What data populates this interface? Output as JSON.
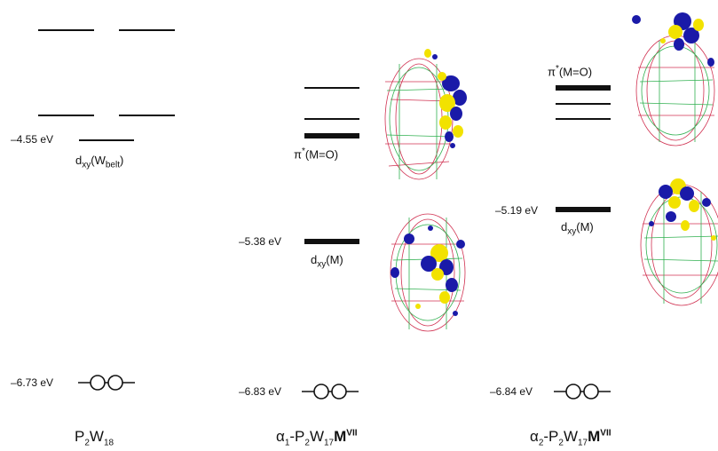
{
  "columns": [
    {
      "title": {
        "pre": "P",
        "s1": "2",
        "mid": "W",
        "s2": "18",
        "bold": "",
        "sup": ""
      },
      "empty_level": {
        "energy": "–4.55 eV",
        "label_main": "d",
        "label_sub": "xy",
        "label_rest": "(W",
        "label_sub2": "belt",
        "label_end": ")"
      },
      "occupied": {
        "energy": "–6.73 eV"
      }
    },
    {
      "title": {
        "pre": "α",
        "s1": "1",
        "mid": "-P",
        "s2": "2",
        "mid2": "W",
        "s3": "17",
        "bold": "M",
        "sup": "VII"
      },
      "pi_label": {
        "main": "π",
        "sup": "*",
        "rest": "(M=O)"
      },
      "dxy_level": {
        "energy": "–5.38 eV",
        "label_main": "d",
        "label_sub": "xy",
        "label_rest": "(M)"
      },
      "occupied": {
        "energy": "–6.83 eV"
      }
    },
    {
      "title": {
        "pre": "α",
        "s1": "2",
        "mid": "-P",
        "s2": "2",
        "mid2": "W",
        "s3": "17",
        "bold": "M",
        "sup": "VII"
      },
      "pi_label": {
        "main": "π",
        "sup": "*",
        "rest": "(M=O)"
      },
      "dxy_level": {
        "energy": "–5.19 eV",
        "label_main": "d",
        "label_sub": "xy",
        "label_rest": "(M)"
      },
      "occupied": {
        "energy": "–6.84 eV"
      }
    }
  ],
  "colors": {
    "level": "#111111",
    "lobe_blue": "#1a1aa8",
    "lobe_yellow": "#f2e200",
    "cage_red": "#d03050",
    "cage_green": "#30b050"
  }
}
